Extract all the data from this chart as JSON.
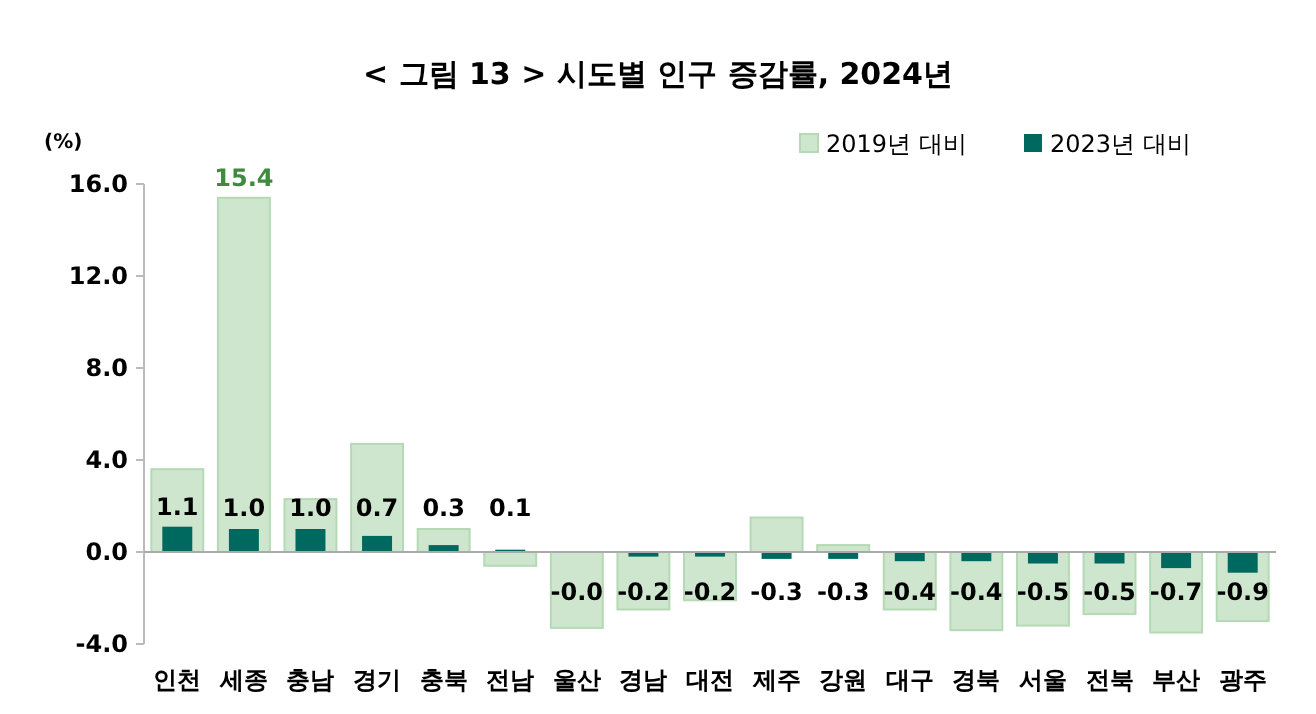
{
  "chart_data": {
    "type": "bar",
    "title": "< 그림 13 > 시도별 인구 증감률, 2024년",
    "ylabel": "(%)",
    "categories": [
      "인천",
      "세종",
      "충남",
      "경기",
      "충북",
      "전남",
      "울산",
      "경남",
      "대전",
      "제주",
      "강원",
      "대구",
      "경북",
      "서울",
      "전북",
      "부산",
      "광주"
    ],
    "series": [
      {
        "name": "2019년 대비",
        "color": "#cde6cd",
        "values": [
          3.6,
          15.4,
          2.3,
          4.7,
          1.0,
          -0.6,
          -3.3,
          -2.5,
          -2.1,
          1.5,
          0.3,
          -2.5,
          -3.4,
          -3.2,
          -2.7,
          -3.5,
          -3.0
        ],
        "value_labels": [
          null,
          "15.4",
          null,
          null,
          null,
          null,
          null,
          null,
          null,
          null,
          null,
          null,
          null,
          null,
          null,
          null,
          null
        ]
      },
      {
        "name": "2023년 대비",
        "color": "#00695f",
        "values": [
          1.1,
          1.0,
          1.0,
          0.7,
          0.3,
          0.1,
          -0.04,
          -0.2,
          -0.2,
          -0.3,
          -0.3,
          -0.4,
          -0.4,
          -0.5,
          -0.5,
          -0.7,
          -0.9
        ],
        "value_labels": [
          "1.1",
          "1.0",
          "1.0",
          "0.7",
          "0.3",
          "0.1",
          "-0.0",
          "-0.2",
          "-0.2",
          "-0.3",
          "-0.3",
          "-0.4",
          "-0.4",
          "-0.5",
          "-0.5",
          "-0.7",
          "-0.9"
        ]
      }
    ],
    "ylim": [
      -4,
      16
    ],
    "yticks": [
      {
        "value": -4,
        "label": "-4.0"
      },
      {
        "value": 0,
        "label": "0.0"
      },
      {
        "value": 4,
        "label": "4.0"
      },
      {
        "value": 8,
        "label": "8.0"
      },
      {
        "value": 12,
        "label": "12.0"
      },
      {
        "value": 16,
        "label": "16.0"
      }
    ],
    "legend": "top right"
  }
}
